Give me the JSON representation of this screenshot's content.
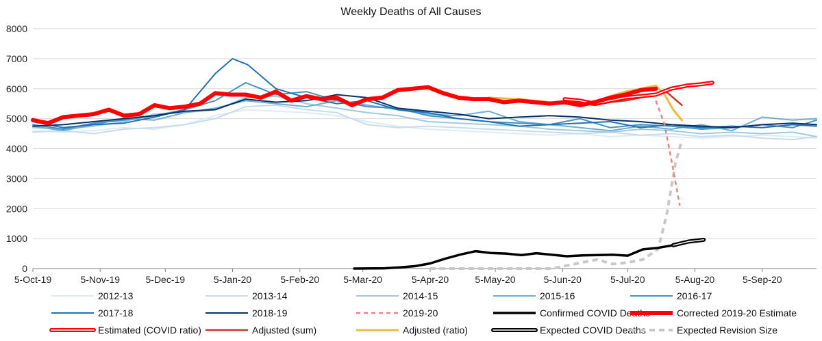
{
  "chart_data": {
    "type": "line",
    "title": "Weekly Deaths of All Causes",
    "xlabel": "",
    "ylabel": "",
    "ylim": [
      0,
      8000
    ],
    "yticks": [
      0,
      1000,
      2000,
      3000,
      4000,
      5000,
      6000,
      7000,
      8000
    ],
    "xlim": [
      "2019-10-05",
      "2020-09-30"
    ],
    "x_tick_labels": [
      "5-Oct-19",
      "5-Nov-19",
      "5-Dec-19",
      "5-Jan-20",
      "5-Feb-20",
      "5-Mar-20",
      "5-Apr-20",
      "5-May-20",
      "5-Jun-20",
      "5-Jul-20",
      "5-Aug-20",
      "5-Sep-20"
    ],
    "x_tick_dates": [
      "2019-10-05",
      "2019-11-05",
      "2019-12-05",
      "2020-01-05",
      "2020-02-05",
      "2020-03-05",
      "2020-04-05",
      "2020-05-05",
      "2020-06-05",
      "2020-07-05",
      "2020-08-05",
      "2020-09-05"
    ],
    "grid": true,
    "legend_position": "bottom",
    "series": [
      {
        "name": "2012-13",
        "color": "#deebf7",
        "width": 2,
        "dash": "",
        "x": [
          "2019-10-05",
          "2019-10-19",
          "2019-11-02",
          "2019-11-16",
          "2019-11-30",
          "2019-12-14",
          "2019-12-28",
          "2020-01-11",
          "2020-01-25",
          "2020-02-08",
          "2020-02-22",
          "2020-03-07",
          "2020-03-21",
          "2020-04-04",
          "2020-04-18",
          "2020-05-02",
          "2020-05-16",
          "2020-05-30",
          "2020-06-13",
          "2020-06-27",
          "2020-07-11",
          "2020-07-25",
          "2020-08-08",
          "2020-08-22",
          "2020-09-05",
          "2020-09-19",
          "2020-09-30"
        ],
        "y": [
          4600,
          4550,
          4600,
          4700,
          4650,
          4800,
          5100,
          5300,
          5250,
          5200,
          5100,
          4900,
          4750,
          4650,
          4600,
          4550,
          4500,
          4450,
          4500,
          4400,
          4450,
          4400,
          4350,
          4400,
          4450,
          4400,
          4350
        ]
      },
      {
        "name": "2013-14",
        "color": "#c6dbef",
        "width": 2,
        "dash": "",
        "x": [
          "2019-10-05",
          "2019-10-19",
          "2019-11-02",
          "2019-11-16",
          "2019-11-30",
          "2019-12-14",
          "2019-12-28",
          "2020-01-11",
          "2020-01-25",
          "2020-02-08",
          "2020-02-22",
          "2020-03-07",
          "2020-03-21",
          "2020-04-04",
          "2020-04-18",
          "2020-05-02",
          "2020-05-16",
          "2020-05-30",
          "2020-06-13",
          "2020-06-27",
          "2020-07-11",
          "2020-07-25",
          "2020-08-08",
          "2020-08-22",
          "2020-09-05",
          "2020-09-19",
          "2020-09-30"
        ],
        "y": [
          4550,
          4600,
          4500,
          4650,
          4700,
          4800,
          5000,
          5400,
          5450,
          5300,
          5200,
          4800,
          4700,
          4750,
          4700,
          4650,
          4600,
          4550,
          4500,
          4550,
          4450,
          4500,
          4400,
          4450,
          4350,
          4300,
          4400
        ]
      },
      {
        "name": "2014-15",
        "color": "#9ecae1",
        "width": 2,
        "dash": "",
        "x": [
          "2019-10-05",
          "2019-10-19",
          "2019-11-02",
          "2019-11-16",
          "2019-11-30",
          "2019-12-14",
          "2019-12-28",
          "2020-01-11",
          "2020-01-25",
          "2020-02-08",
          "2020-02-22",
          "2020-03-07",
          "2020-03-21",
          "2020-04-04",
          "2020-04-18",
          "2020-05-02",
          "2020-05-16",
          "2020-05-30",
          "2020-06-13",
          "2020-06-27",
          "2020-07-11",
          "2020-07-25",
          "2020-08-08",
          "2020-08-22",
          "2020-09-05",
          "2020-09-19",
          "2020-09-30"
        ],
        "y": [
          4700,
          4650,
          4750,
          4900,
          5150,
          5200,
          5300,
          5700,
          5750,
          5500,
          5350,
          5200,
          5100,
          4900,
          4850,
          4800,
          4750,
          4650,
          4600,
          4550,
          4650,
          4600,
          4500,
          4550,
          4500,
          4550,
          4400
        ]
      },
      {
        "name": "2015-16",
        "color": "#6baed6",
        "width": 2,
        "dash": "",
        "x": [
          "2019-10-05",
          "2019-10-19",
          "2019-11-02",
          "2019-11-16",
          "2019-11-30",
          "2019-12-14",
          "2019-12-28",
          "2020-01-11",
          "2020-01-25",
          "2020-02-08",
          "2020-02-22",
          "2020-03-07",
          "2020-03-21",
          "2020-04-04",
          "2020-04-18",
          "2020-05-02",
          "2020-05-16",
          "2020-05-30",
          "2020-06-13",
          "2020-06-27",
          "2020-07-11",
          "2020-07-25",
          "2020-08-08",
          "2020-08-22",
          "2020-09-05",
          "2020-09-19",
          "2020-09-30"
        ],
        "y": [
          4750,
          4600,
          4800,
          5000,
          4950,
          5200,
          5350,
          5600,
          5500,
          5400,
          5600,
          5450,
          5300,
          5150,
          5100,
          5250,
          4900,
          4800,
          4700,
          4600,
          4750,
          4650,
          4800,
          4600,
          5050,
          4950,
          5000
        ]
      },
      {
        "name": "2016-17",
        "color": "#4292c6",
        "width": 2,
        "dash": "",
        "x": [
          "2019-10-05",
          "2019-10-19",
          "2019-11-02",
          "2019-11-16",
          "2019-11-30",
          "2019-12-14",
          "2019-12-28",
          "2020-01-11",
          "2020-01-25",
          "2020-02-08",
          "2020-02-22",
          "2020-03-07",
          "2020-03-21",
          "2020-04-04",
          "2020-04-18",
          "2020-05-02",
          "2020-05-16",
          "2020-05-30",
          "2020-06-13",
          "2020-06-27",
          "2020-07-11",
          "2020-07-25",
          "2020-08-08",
          "2020-08-22",
          "2020-09-05",
          "2020-09-19",
          "2020-09-30"
        ],
        "y": [
          4800,
          4650,
          4850,
          4950,
          5100,
          5300,
          5600,
          6200,
          5800,
          5900,
          5600,
          5400,
          5350,
          5100,
          5000,
          4900,
          4850,
          4800,
          5000,
          4700,
          4800,
          4750,
          4650,
          4700,
          4800,
          4700,
          4950
        ]
      },
      {
        "name": "2017-18",
        "color": "#2171b5",
        "width": 2,
        "dash": "",
        "x": [
          "2019-10-05",
          "2019-10-19",
          "2019-11-02",
          "2019-11-16",
          "2019-11-30",
          "2019-12-14",
          "2019-12-28",
          "2020-01-05",
          "2020-01-12",
          "2020-01-25",
          "2020-02-08",
          "2020-02-22",
          "2020-03-07",
          "2020-03-21",
          "2020-04-04",
          "2020-04-18",
          "2020-05-02",
          "2020-05-16",
          "2020-05-30",
          "2020-06-13",
          "2020-06-27",
          "2020-07-11",
          "2020-07-25",
          "2020-08-08",
          "2020-08-22",
          "2020-09-05",
          "2020-09-19",
          "2020-09-30"
        ],
        "y": [
          4900,
          4700,
          4800,
          4850,
          5050,
          5300,
          6500,
          7000,
          6800,
          6000,
          5700,
          5500,
          5600,
          5300,
          5200,
          5000,
          4900,
          4750,
          4800,
          4850,
          4900,
          4700,
          4800,
          4700,
          4750,
          4700,
          4800,
          4750
        ]
      },
      {
        "name": "2018-19",
        "color": "#08306b",
        "width": 2,
        "dash": "",
        "x": [
          "2019-10-05",
          "2019-10-19",
          "2019-11-02",
          "2019-11-16",
          "2019-11-30",
          "2019-12-14",
          "2019-12-28",
          "2020-01-11",
          "2020-01-25",
          "2020-02-08",
          "2020-02-22",
          "2020-03-07",
          "2020-03-21",
          "2020-04-04",
          "2020-04-18",
          "2020-05-02",
          "2020-05-16",
          "2020-05-30",
          "2020-06-13",
          "2020-06-27",
          "2020-07-11",
          "2020-07-25",
          "2020-08-08",
          "2020-08-22",
          "2020-09-05",
          "2020-09-19",
          "2020-09-30"
        ],
        "y": [
          4750,
          4800,
          4900,
          5000,
          5100,
          5250,
          5300,
          5650,
          5550,
          5600,
          5800,
          5700,
          5350,
          5250,
          5150,
          5000,
          5050,
          5100,
          5050,
          4950,
          4900,
          4800,
          4750,
          4700,
          4800,
          4850,
          4800
        ]
      },
      {
        "name": "2019-20",
        "color": "#f08080",
        "width": 2.5,
        "dash": "6,5",
        "x": [
          "2020-07-18",
          "2020-07-22",
          "2020-07-26",
          "2020-07-29"
        ],
        "y": [
          5600,
          4800,
          3300,
          2100
        ]
      },
      {
        "name": "Confirmed COVID Deaths",
        "color": "#000000",
        "width": 3.5,
        "dash": "",
        "x": [
          "2020-03-01",
          "2020-03-15",
          "2020-03-22",
          "2020-03-29",
          "2020-04-05",
          "2020-04-12",
          "2020-04-19",
          "2020-04-26",
          "2020-05-03",
          "2020-05-10",
          "2020-05-17",
          "2020-05-24",
          "2020-05-31",
          "2020-06-07",
          "2020-06-14",
          "2020-06-21",
          "2020-06-28",
          "2020-07-05",
          "2020-07-12",
          "2020-07-19",
          "2020-07-26"
        ],
        "y": [
          0,
          10,
          40,
          80,
          170,
          330,
          470,
          580,
          520,
          500,
          450,
          510,
          460,
          410,
          440,
          450,
          460,
          430,
          640,
          690,
          780
        ]
      },
      {
        "name": "Corrected 2019-20 Estimate",
        "color": "#ff0000",
        "width": 6,
        "dash": "",
        "x": [
          "2019-10-05",
          "2019-10-12",
          "2019-10-19",
          "2019-10-26",
          "2019-11-02",
          "2019-11-09",
          "2019-11-16",
          "2019-11-23",
          "2019-11-30",
          "2019-12-07",
          "2019-12-14",
          "2019-12-21",
          "2019-12-28",
          "2020-01-04",
          "2020-01-11",
          "2020-01-18",
          "2020-01-25",
          "2020-02-01",
          "2020-02-08",
          "2020-02-15",
          "2020-02-22",
          "2020-02-29",
          "2020-03-07",
          "2020-03-14",
          "2020-03-21",
          "2020-03-28",
          "2020-04-04",
          "2020-04-11",
          "2020-04-18",
          "2020-04-25",
          "2020-05-02",
          "2020-05-09",
          "2020-05-16",
          "2020-05-23",
          "2020-05-30",
          "2020-06-06",
          "2020-06-13",
          "2020-06-20",
          "2020-06-27",
          "2020-07-04",
          "2020-07-11",
          "2020-07-18"
        ],
        "y": [
          4950,
          4850,
          5050,
          5100,
          5150,
          5300,
          5100,
          5150,
          5450,
          5350,
          5400,
          5500,
          5850,
          5800,
          5800,
          5700,
          5900,
          5600,
          5750,
          5650,
          5700,
          5450,
          5650,
          5700,
          5950,
          6000,
          6050,
          5850,
          5700,
          5650,
          5650,
          5550,
          5600,
          5550,
          5500,
          5550,
          5450,
          5550,
          5700,
          5800,
          5950,
          6000
        ]
      },
      {
        "name": "Estimated (COVID ratio)",
        "color": "#ff0000",
        "width": 4,
        "dash": "",
        "outline": true,
        "x": [
          "2020-06-06",
          "2020-06-13",
          "2020-06-20",
          "2020-06-27",
          "2020-07-04",
          "2020-07-11",
          "2020-07-18",
          "2020-07-25",
          "2020-08-01",
          "2020-08-08",
          "2020-08-13"
        ],
        "y": [
          5650,
          5600,
          5500,
          5600,
          5700,
          5750,
          5800,
          6000,
          6100,
          6150,
          6200
        ]
      },
      {
        "name": "Adjusted (sum)",
        "color": "#c0392b",
        "width": 2.5,
        "dash": "",
        "x": [
          "2020-06-06",
          "2020-06-13",
          "2020-06-20",
          "2020-06-27",
          "2020-07-04",
          "2020-07-11",
          "2020-07-18",
          "2020-07-22",
          "2020-07-26",
          "2020-07-30"
        ],
        "y": [
          5600,
          5500,
          5450,
          5550,
          5600,
          5700,
          5800,
          5950,
          5700,
          5450
        ]
      },
      {
        "name": "Adjusted (ratio)",
        "color": "#f4b93a",
        "width": 3,
        "dash": "",
        "x": [
          "2020-05-02",
          "2020-05-16",
          "2020-05-30",
          "2020-06-13",
          "2020-06-20",
          "2020-06-27",
          "2020-07-04",
          "2020-07-11",
          "2020-07-18",
          "2020-07-22",
          "2020-07-26",
          "2020-07-30"
        ],
        "y": [
          5700,
          5650,
          5550,
          5450,
          5500,
          5750,
          5900,
          6000,
          6100,
          5800,
          5300,
          4950
        ]
      },
      {
        "name": "Expected COVID Deaths",
        "color": "#000000",
        "width": 4,
        "dash": "",
        "outline": true,
        "x": [
          "2020-07-26",
          "2020-08-02",
          "2020-08-09"
        ],
        "y": [
          780,
          900,
          960
        ]
      },
      {
        "name": "Expected Revision Size",
        "color": "#c8c8c8",
        "width": 4,
        "dash": "8,6",
        "x": [
          "2020-04-05",
          "2020-04-19",
          "2020-05-03",
          "2020-05-17",
          "2020-05-31",
          "2020-06-07",
          "2020-06-14",
          "2020-06-21",
          "2020-06-28",
          "2020-07-05",
          "2020-07-12",
          "2020-07-19",
          "2020-07-23",
          "2020-07-27",
          "2020-07-30"
        ],
        "y": [
          0,
          0,
          0,
          0,
          0,
          100,
          200,
          300,
          150,
          200,
          300,
          650,
          1800,
          3500,
          4300
        ]
      }
    ],
    "legend": {
      "rows": [
        [
          "2012-13",
          "2013-14",
          "2014-15",
          "2015-16",
          "2016-17"
        ],
        [
          "2017-18",
          "2018-19",
          "2019-20",
          "Confirmed COVID Deaths",
          "Corrected 2019-20 Estimate"
        ],
        [
          "Estimated (COVID ratio)",
          "Adjusted (sum)",
          "Adjusted (ratio)",
          "Expected COVID Deaths",
          "Expected Revision Size"
        ]
      ]
    }
  }
}
